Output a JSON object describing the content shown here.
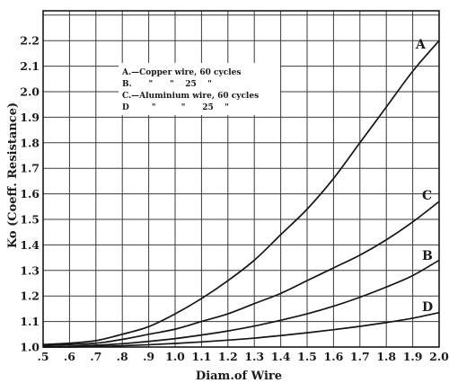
{
  "chart_data": {
    "type": "line",
    "xlabel": "Diam.of Wire",
    "ylabel": "Ko (Coeff. Resistance)",
    "xlim": [
      0.5,
      2.0
    ],
    "ylim": [
      1.0,
      2.25
    ],
    "x_ticks": [
      0.5,
      0.6,
      0.7,
      0.8,
      0.9,
      1.0,
      1.1,
      1.2,
      1.3,
      1.4,
      1.5,
      1.6,
      1.7,
      1.8,
      1.9,
      2.0
    ],
    "x_tick_labels": [
      ".5",
      ".6",
      ".7",
      ".8",
      ".9",
      "1.0",
      "1.1",
      "1.2",
      "1.3",
      "1.4",
      "1.5",
      "1.6",
      "1.7",
      "1.8",
      "1.9",
      "2.0"
    ],
    "y_ticks": [
      1.0,
      1.1,
      1.2,
      1.3,
      1.4,
      1.5,
      1.6,
      1.7,
      1.8,
      1.9,
      2.0,
      2.1,
      2.2
    ],
    "y_tick_labels": [
      "1.0",
      "1.1",
      "1.2",
      "1.3",
      "1.4",
      "1.5",
      "1.6",
      "1.7",
      "1.8",
      "1.9",
      "2.0",
      "2.1",
      "2.2"
    ],
    "grid": true,
    "legend_lines": [
      "A.—Copper wire, 60 cycles",
      "B.      \"      \"    25    \"",
      "C.—Aluminium wire, 60 cycles",
      "D        \"         \"      25    \""
    ],
    "series": [
      {
        "name": "A",
        "x": [
          0.5,
          0.6,
          0.7,
          0.8,
          0.9,
          1.0,
          1.1,
          1.2,
          1.3,
          1.4,
          1.5,
          1.6,
          1.7,
          1.8,
          1.9,
          2.0
        ],
        "values": [
          1.01,
          1.015,
          1.025,
          1.05,
          1.08,
          1.13,
          1.19,
          1.26,
          1.34,
          1.44,
          1.54,
          1.66,
          1.8,
          1.94,
          2.08,
          2.2
        ]
      },
      {
        "name": "C",
        "x": [
          0.5,
          0.6,
          0.7,
          0.8,
          0.9,
          1.0,
          1.1,
          1.2,
          1.3,
          1.4,
          1.5,
          1.6,
          1.7,
          1.8,
          1.9,
          2.0
        ],
        "values": [
          1.005,
          1.01,
          1.015,
          1.03,
          1.05,
          1.07,
          1.1,
          1.13,
          1.17,
          1.21,
          1.26,
          1.31,
          1.36,
          1.42,
          1.49,
          1.57
        ]
      },
      {
        "name": "B",
        "x": [
          0.5,
          0.6,
          0.7,
          0.8,
          0.9,
          1.0,
          1.1,
          1.2,
          1.3,
          1.4,
          1.5,
          1.6,
          1.7,
          1.8,
          1.9,
          2.0
        ],
        "values": [
          1.0,
          1.003,
          1.007,
          1.013,
          1.022,
          1.033,
          1.047,
          1.063,
          1.082,
          1.105,
          1.13,
          1.16,
          1.195,
          1.235,
          1.28,
          1.34
        ]
      },
      {
        "name": "D",
        "x": [
          0.5,
          0.6,
          0.7,
          0.8,
          0.9,
          1.0,
          1.1,
          1.2,
          1.3,
          1.4,
          1.5,
          1.6,
          1.7,
          1.8,
          1.9,
          2.0
        ],
        "values": [
          1.0,
          1.0,
          1.002,
          1.005,
          1.009,
          1.014,
          1.02,
          1.027,
          1.035,
          1.045,
          1.056,
          1.068,
          1.081,
          1.096,
          1.113,
          1.135
        ]
      }
    ]
  }
}
